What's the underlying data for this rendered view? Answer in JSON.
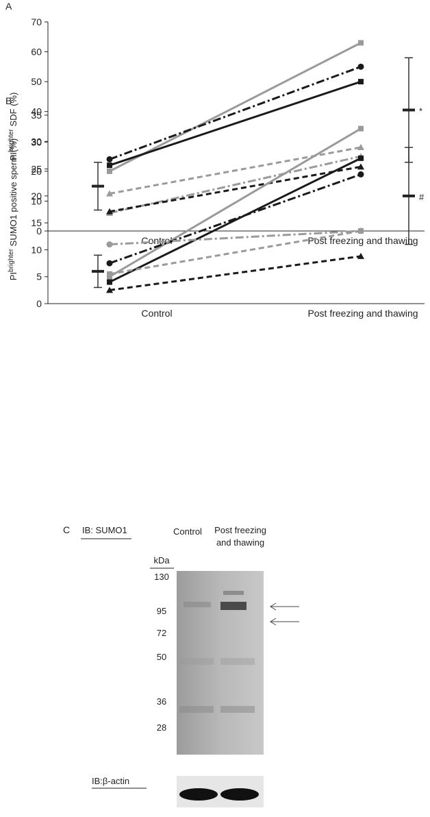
{
  "chart_data": [
    {
      "type": "line",
      "panel": "A",
      "y_label_parts": [
        "PI",
        "brighter",
        " SDF (%)"
      ],
      "categories": [
        "Control",
        "Post freezing and thawing"
      ],
      "ylim": [
        0,
        70
      ],
      "yticks": [
        0,
        10,
        20,
        30,
        40,
        50,
        60,
        70
      ],
      "series": [
        {
          "color": "#9a9a9a",
          "dash": "solid",
          "marker": "square",
          "values": [
            20,
            63
          ]
        },
        {
          "color": "#1a1a1a",
          "dash": "dashdot",
          "marker": "circle",
          "values": [
            24,
            55
          ]
        },
        {
          "color": "#1a1a1a",
          "dash": "solid",
          "marker": "square",
          "values": [
            22,
            50
          ]
        },
        {
          "color": "#9a9a9a",
          "dash": "dashed",
          "marker": "triangle",
          "values": [
            12.5,
            28
          ]
        },
        {
          "color": "#9a9a9a",
          "dash": "dashdot",
          "marker": "triangle",
          "values": [
            6,
            25
          ]
        },
        {
          "color": "#1a1a1a",
          "dash": "dashed",
          "marker": "triangle",
          "values": [
            6.5,
            21.5
          ]
        }
      ],
      "summary": [
        {
          "mean": 15,
          "error": 8
        },
        {
          "mean": 40.5,
          "error": 17.5,
          "annotation": "*"
        }
      ]
    },
    {
      "type": "line",
      "panel": "B",
      "y_label_parts": [
        "PI",
        "brighter",
        " SUMO1 positive sperm (%)"
      ],
      "categories": [
        "Control",
        "Post freezing and thawing"
      ],
      "ylim": [
        0,
        35
      ],
      "yticks": [
        0,
        5,
        10,
        15,
        20,
        25,
        30,
        35
      ],
      "series": [
        {
          "color": "#9a9a9a",
          "dash": "solid",
          "marker": "square",
          "values": [
            5,
            32.5
          ]
        },
        {
          "color": "#1a1a1a",
          "dash": "solid",
          "marker": "square",
          "values": [
            4,
            27
          ]
        },
        {
          "color": "#1a1a1a",
          "dash": "dashdot",
          "marker": "circle",
          "values": [
            7.5,
            24
          ]
        },
        {
          "color": "#9a9a9a",
          "dash": "dashdot",
          "marker": "circle",
          "values": [
            11,
            13.5
          ]
        },
        {
          "color": "#9a9a9a",
          "dash": "dashed",
          "marker": "square",
          "values": [
            5.5,
            13.5
          ]
        },
        {
          "color": "#1a1a1a",
          "dash": "dashed",
          "marker": "triangle",
          "values": [
            2.5,
            8.8
          ]
        }
      ],
      "summary": [
        {
          "mean": 6,
          "error": 3
        },
        {
          "mean": 20,
          "error": 9,
          "annotation": "#"
        }
      ]
    }
  ],
  "blot": {
    "panel": "C",
    "antibody": "IB: SUMO1",
    "lanes": [
      "Control",
      "Post freezing",
      "and thawing"
    ],
    "unit": "kDa",
    "markers": [
      "130",
      "95",
      "72",
      "50",
      "36",
      "28"
    ],
    "loading": "IB:β-actin"
  }
}
